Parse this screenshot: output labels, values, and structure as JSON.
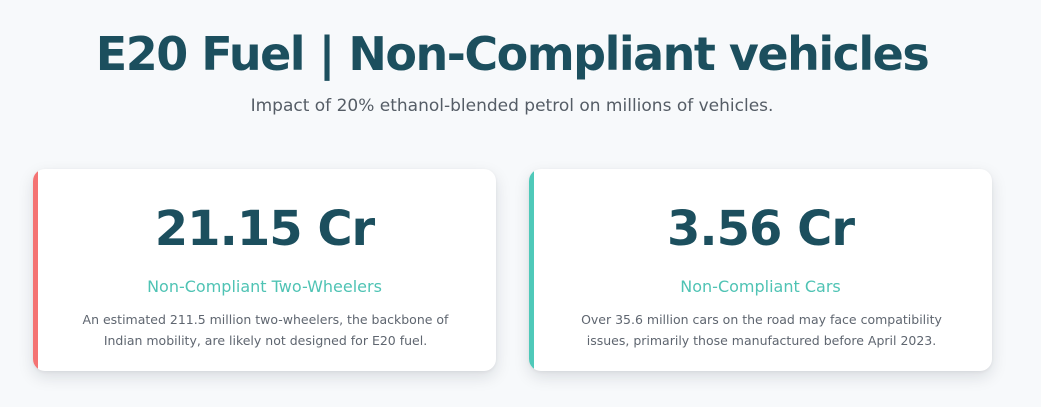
{
  "header": {
    "title": "E20 Fuel | Non-Compliant vehicles",
    "subtitle": "Impact of 20% ethanol-blended petrol on millions of vehicles."
  },
  "cards": [
    {
      "value": "21.15 Cr",
      "label": "Non-Compliant Two-Wheelers",
      "description": "An estimated 211.5 million two-wheelers, the backbone of Indian mobility, are likely not designed for E20 fuel.",
      "accent_color": "#f47373"
    },
    {
      "value": "3.56 Cr",
      "label": "Non-Compliant Cars",
      "description": "Over 35.6 million cars on the road may face compatibility issues, primarily those manufactured before April 2023.",
      "accent_color": "#4fc9b9"
    }
  ],
  "colors": {
    "title": "#1c4f5e",
    "label": "#4fc3b4",
    "background": "#f7f9fb"
  }
}
